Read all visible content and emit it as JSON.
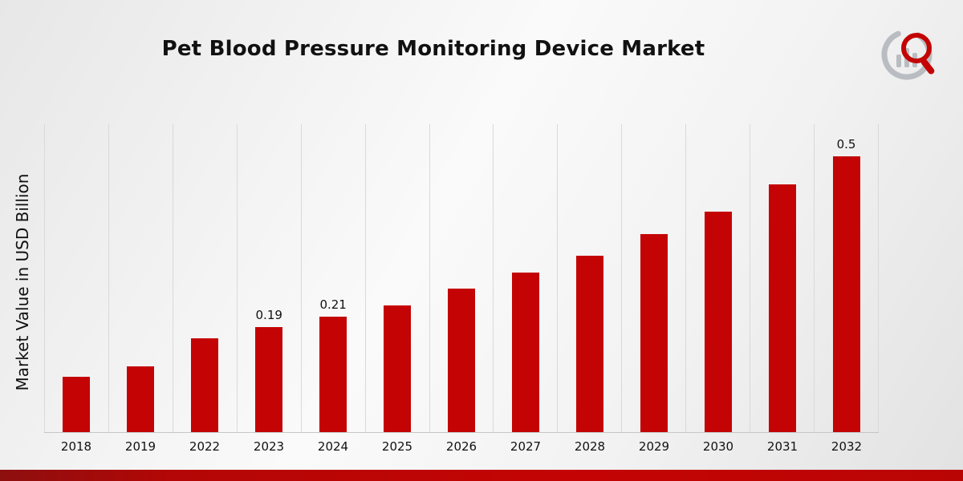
{
  "title": "Pet Blood Pressure Monitoring Device Market",
  "ylabel": "Market Value in USD Billion",
  "chart_data": {
    "type": "bar",
    "title": "Pet Blood Pressure Monitoring Device Market",
    "xlabel": "",
    "ylabel": "Market Value in USD Billion",
    "categories": [
      "2018",
      "2019",
      "2022",
      "2023",
      "2024",
      "2025",
      "2026",
      "2027",
      "2028",
      "2029",
      "2030",
      "2031",
      "2032"
    ],
    "values": [
      0.1,
      0.12,
      0.17,
      0.19,
      0.21,
      0.23,
      0.26,
      0.29,
      0.32,
      0.36,
      0.4,
      0.45,
      0.5
    ],
    "data_labels": [
      "",
      "",
      "",
      "0.19",
      "0.21",
      "",
      "",
      "",
      "",
      "",
      "",
      "",
      "0.5"
    ],
    "ylim": [
      0,
      0.56
    ],
    "grid": "vertical",
    "legend": "none",
    "bar_color": "#c40404"
  },
  "style": {
    "accent_red": "#c40404",
    "grid_color": "#d9d9d9",
    "text_color": "#111111"
  },
  "branding": {
    "logo_name": "market-research-logo"
  }
}
